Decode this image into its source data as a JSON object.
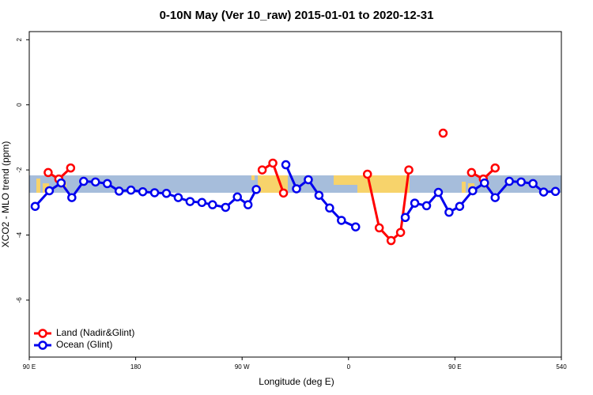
{
  "chart_data": {
    "type": "line",
    "title": "0-10N May (Ver 10_raw)   2015-01-01 to 2020-12-31",
    "xlabel": "Longitude (deg E)",
    "ylabel": "XCO2 - MLO trend (ppm)",
    "xlim": [
      90,
      540
    ],
    "xticks": [
      {
        "value": 90,
        "label": "90 E"
      },
      180,
      {
        "value": 270,
        "label": "90 W"
      },
      {
        "value": 360,
        "label": "0"
      },
      {
        "value": 450,
        "label": "90 E"
      },
      540
    ],
    "ylim": [
      -7.75,
      2.25
    ],
    "yticks": [
      2,
      0,
      -2,
      -4,
      -6
    ],
    "legend": "bottom-left",
    "series": [
      {
        "name": "Land (Nadir&Glint)",
        "color": "#ff0000",
        "x": [
          106,
          115,
          125,
          null,
          287,
          296,
          305,
          null,
          376,
          386,
          396,
          404,
          411,
          null,
          440,
          null,
          464,
          474,
          484
        ],
        "values": [
          -2.08,
          -2.28,
          -1.94,
          null,
          -2.0,
          -1.79,
          -2.71,
          null,
          -2.13,
          -3.78,
          -4.17,
          -3.92,
          -2.0,
          null,
          -0.87,
          null,
          -2.08,
          -2.28,
          -1.94
        ]
      },
      {
        "name": "Ocean (Glint)",
        "color": "#0000ee",
        "x": [
          95,
          107,
          117,
          126,
          136,
          146,
          156,
          166,
          176,
          186,
          196,
          206,
          216,
          226,
          236,
          245,
          256,
          266,
          275,
          282,
          null,
          307,
          316,
          326,
          335,
          344,
          354,
          366,
          null,
          408,
          416,
          426,
          436,
          445,
          454,
          465,
          475,
          484,
          496,
          506,
          516,
          525,
          535
        ],
        "values": [
          -3.12,
          -2.64,
          -2.4,
          -2.85,
          -2.35,
          -2.37,
          -2.42,
          -2.65,
          -2.62,
          -2.67,
          -2.7,
          -2.72,
          -2.85,
          -2.97,
          -3.0,
          -3.07,
          -3.15,
          -2.83,
          -3.07,
          -2.6,
          null,
          -1.84,
          -2.58,
          -2.3,
          -2.78,
          -3.17,
          -3.55,
          -3.75,
          null,
          -3.46,
          -3.02,
          -3.1,
          -2.69,
          -3.3,
          -3.12,
          -2.64,
          -2.4,
          -2.85,
          -2.35,
          -2.37,
          -2.42,
          -2.68,
          -2.66
        ]
      }
    ]
  }
}
